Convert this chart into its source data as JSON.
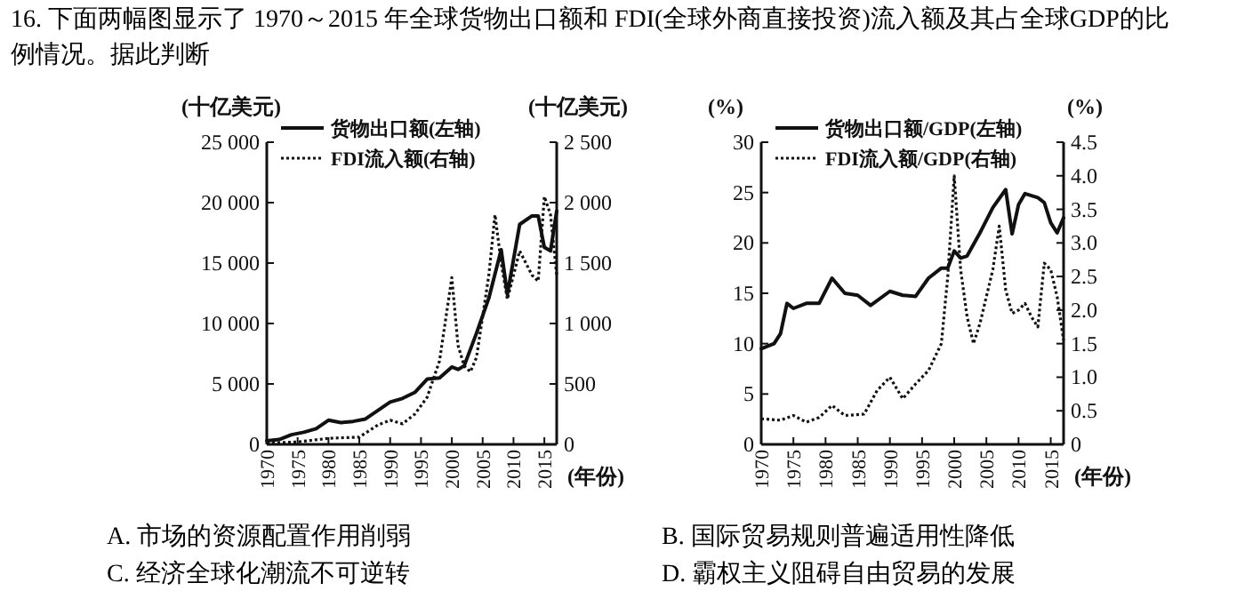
{
  "chart_data": [
    {
      "type": "line",
      "title": "16. 下面两幅图显示了 1970～2015 年全球货物出口额和 FDI(全球外商直接投资)流入额及其占全球GDP的比例情况。据此判断",
      "ylabel": "(十亿美元)",
      "y2label": "(十亿美元)",
      "xlabel": "(年份)",
      "legend": "top left",
      "xlim": [
        1970,
        2017
      ],
      "xticks": [
        1970,
        1975,
        1980,
        1985,
        1990,
        1995,
        2000,
        2005,
        2010,
        2015
      ],
      "ylim": [
        0,
        25000
      ],
      "yticks": [
        {
          "value": 0,
          "label": "0"
        },
        {
          "value": 5000,
          "label": "5 000"
        },
        {
          "value": 10000,
          "label": "10 000"
        },
        {
          "value": 15000,
          "label": "15 000"
        },
        {
          "value": 20000,
          "label": "20 000"
        },
        {
          "value": 25000,
          "label": "25 000"
        }
      ],
      "y2lim": [
        0,
        2500
      ],
      "y2ticks": [
        {
          "value": 0,
          "label": "0"
        },
        {
          "value": 500,
          "label": "500"
        },
        {
          "value": 1000,
          "label": "1 000"
        },
        {
          "value": 1500,
          "label": "1 500"
        },
        {
          "value": 2000,
          "label": "2 000"
        },
        {
          "value": 2500,
          "label": "2 500"
        }
      ],
      "series": [
        {
          "name": "货物出口额(左轴)",
          "color": "#111111",
          "line_style": "solid",
          "x": [
            1970,
            1972,
            1974,
            1976,
            1978,
            1980,
            1982,
            1984,
            1986,
            1988,
            1990,
            1992,
            1994,
            1996,
            1998,
            2000,
            2001,
            2002,
            2004,
            2006,
            2008,
            2009,
            2011,
            2013,
            2014,
            2015,
            2016,
            2017
          ],
          "values": [
            300,
            400,
            800,
            1000,
            1300,
            2000,
            1800,
            1900,
            2100,
            2800,
            3500,
            3800,
            4300,
            5400,
            5500,
            6400,
            6200,
            6500,
            9200,
            12100,
            16100,
            12400,
            18200,
            18900,
            18900,
            16300,
            16000,
            19300
          ]
        },
        {
          "name": "FDI流入额(右轴)",
          "color": "#111111",
          "line_style": "dotted",
          "axis": "y2",
          "x": [
            1970,
            1975,
            1980,
            1985,
            1988,
            1990,
            1992,
            1994,
            1996,
            1998,
            2000,
            2001,
            2002,
            2003,
            2004,
            2006,
            2007,
            2008,
            2009,
            2010,
            2011,
            2012,
            2013,
            2014,
            2015,
            2016,
            2017
          ],
          "values": [
            10,
            20,
            50,
            60,
            160,
            200,
            170,
            250,
            390,
            690,
            1380,
            820,
            650,
            600,
            720,
            1400,
            1900,
            1500,
            1200,
            1400,
            1600,
            1500,
            1400,
            1350,
            2050,
            1900,
            1400
          ]
        }
      ]
    },
    {
      "type": "line",
      "ylabel": "(%)",
      "y2label": "(%)",
      "xlabel": "(年份)",
      "legend": "top left",
      "xlim": [
        1970,
        2017
      ],
      "xticks": [
        1970,
        1975,
        1980,
        1985,
        1990,
        1995,
        2000,
        2005,
        2010,
        2015
      ],
      "ylim": [
        0,
        30
      ],
      "yticks": [
        0,
        5,
        10,
        15,
        20,
        25,
        30
      ],
      "y2lim": [
        0,
        4.5
      ],
      "y2ticks": [
        {
          "value": 0,
          "label": "0"
        },
        {
          "value": 0.5,
          "label": "0.5"
        },
        {
          "value": 1,
          "label": "1.0"
        },
        {
          "value": 1.5,
          "label": "1.5"
        },
        {
          "value": 2,
          "label": "2.0"
        },
        {
          "value": 2.5,
          "label": "2.5"
        },
        {
          "value": 3,
          "label": "3.0"
        },
        {
          "value": 3.5,
          "label": "3.5"
        },
        {
          "value": 4,
          "label": "4.0"
        },
        {
          "value": 4.5,
          "label": "4.5"
        }
      ],
      "series": [
        {
          "name": "货物出口额/GDP(左轴)",
          "color": "#111111",
          "line_style": "solid",
          "x": [
            1970,
            1972,
            1973,
            1974,
            1975,
            1977,
            1979,
            1981,
            1983,
            1985,
            1987,
            1990,
            1992,
            1994,
            1996,
            1998,
            1999,
            2000,
            2001,
            2002,
            2004,
            2006,
            2008,
            2009,
            2010,
            2011,
            2013,
            2014,
            2015,
            2016,
            2017
          ],
          "values": [
            9.5,
            10,
            11,
            14,
            13.5,
            14,
            14,
            16.5,
            15,
            14.8,
            13.8,
            15.2,
            14.8,
            14.7,
            16.5,
            17.5,
            17.5,
            19.2,
            18.5,
            18.7,
            21,
            23.5,
            25.3,
            20.9,
            23.8,
            24.9,
            24.5,
            24,
            22,
            21,
            22.5
          ]
        },
        {
          "name": "FDI流入额/GDP(右轴)",
          "color": "#111111",
          "line_style": "dotted",
          "axis": "y2",
          "x": [
            1970,
            1973,
            1975,
            1977,
            1979,
            1981,
            1983,
            1986,
            1988,
            1990,
            1992,
            1994,
            1996,
            1998,
            1999,
            2000,
            2001,
            2002,
            2003,
            2004,
            2006,
            2007,
            2008,
            2009,
            2010,
            2011,
            2012,
            2013,
            2014,
            2015,
            2016,
            2017
          ],
          "values": [
            0.38,
            0.36,
            0.43,
            0.33,
            0.4,
            0.58,
            0.43,
            0.45,
            0.8,
            1.0,
            0.68,
            0.9,
            1.1,
            1.5,
            2.5,
            4.0,
            2.6,
            1.9,
            1.5,
            1.8,
            2.6,
            3.25,
            2.3,
            1.95,
            2.0,
            2.1,
            1.9,
            1.75,
            2.7,
            2.6,
            2.2,
            1.55
          ]
        }
      ],
      "annotations": [
        "A. 市场的资源配置作用削弱",
        "B. 国际贸易规则普遍适用性降低",
        "C. 经济全球化潮流不可逆转",
        "D. 霸权主义阻碍自由贸易的发展"
      ]
    }
  ]
}
